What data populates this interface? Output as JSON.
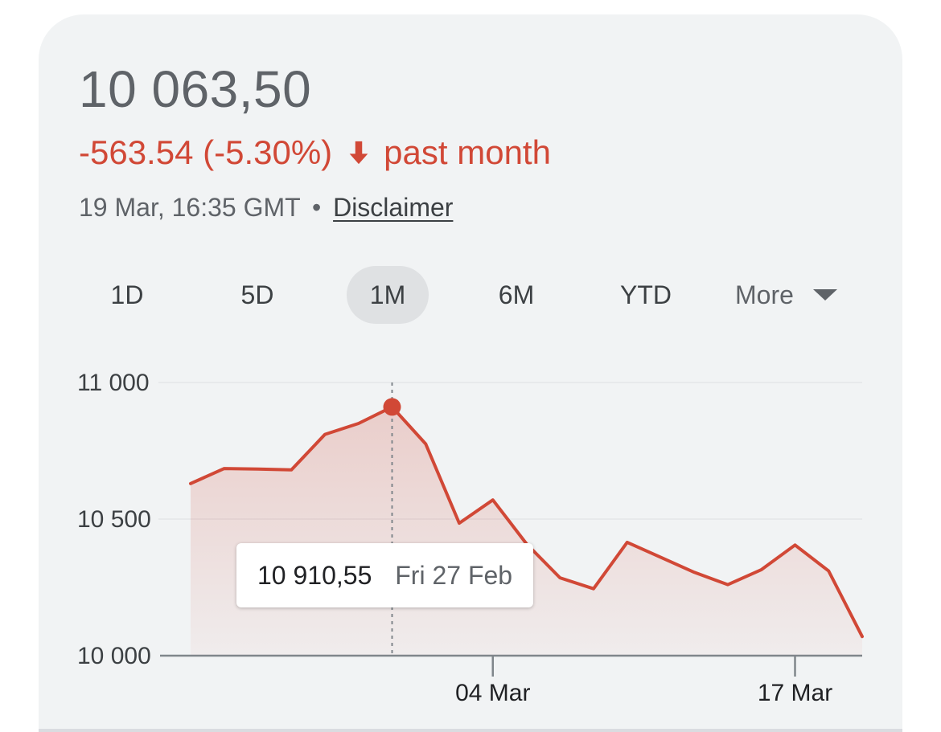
{
  "quote": {
    "price": "10 063,50",
    "change": "-563.54 (-5.30%)",
    "period": "past month",
    "timestamp": "19 Mar, 16:35 GMT",
    "separator": "•",
    "disclaimer": "Disclaimer"
  },
  "colors": {
    "card_bg": "#f1f3f4",
    "negative": "#d14836",
    "text_primary": "#202124",
    "text_secondary": "#5f6368",
    "tab_active_bg": "#dfe1e3"
  },
  "icons": {
    "change_arrow": "arrow-down-icon",
    "more_caret": "caret-down-icon"
  },
  "tabs": [
    {
      "label": "1D",
      "active": false
    },
    {
      "label": "5D",
      "active": false
    },
    {
      "label": "1M",
      "active": true
    },
    {
      "label": "6M",
      "active": false
    },
    {
      "label": "YTD",
      "active": false
    }
  ],
  "more_label": "More",
  "tooltip": {
    "value": "10 910,55",
    "date": "Fri 27 Feb"
  },
  "chart_data": {
    "type": "area",
    "series": [
      {
        "values": [
          10630,
          10685,
          10683,
          10680,
          10810,
          10850,
          10910.55,
          10775,
          10485,
          10570,
          10410,
          10285,
          10245,
          10415,
          10360,
          10305,
          10260,
          10315,
          10405,
          10310,
          10070
        ]
      }
    ],
    "yticks": [
      "11 000",
      "10 500",
      "10 000"
    ],
    "ylim": [
      10000,
      11000
    ],
    "xticks": [
      {
        "label": "04 Mar",
        "index": 9
      },
      {
        "label": "17 Mar",
        "index": 18
      }
    ],
    "highlight_index": 6,
    "grid": true,
    "color": "#d14836"
  }
}
